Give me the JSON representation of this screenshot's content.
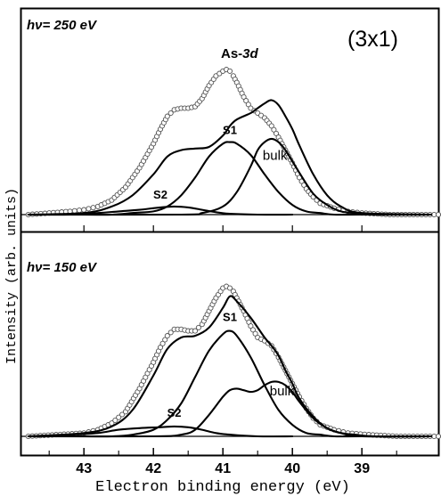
{
  "chart_data": [
    {
      "type": "line",
      "panel_label": "hν= 250 eV",
      "panel_label_parts": {
        "h": "h",
        "nu_suffix": "ν= 250 eV"
      },
      "reconstruction_label": "(3x1)",
      "core_level_label": {
        "element": "As-",
        "orbital": "3d"
      },
      "x_inverted": true,
      "xlim": [
        43.9,
        37.9
      ],
      "ylim": [
        0,
        1.0
      ],
      "baseline": 0.0,
      "series": [
        {
          "name": "",
          "role": "measured",
          "style": "open-circles",
          "x": [
            43.8,
            43.5,
            43.2,
            43.0,
            42.8,
            42.6,
            42.4,
            42.2,
            42.0,
            41.9,
            41.8,
            41.7,
            41.6,
            41.5,
            41.4,
            41.3,
            41.2,
            41.1,
            41.0,
            40.95,
            40.9,
            40.85,
            40.8,
            40.7,
            40.6,
            40.5,
            40.4,
            40.3,
            40.2,
            40.1,
            40.0,
            39.9,
            39.8,
            39.7,
            39.6,
            39.4,
            39.2,
            39.0,
            38.6,
            38.2,
            37.9
          ],
          "y": [
            0.0,
            0.01,
            0.02,
            0.03,
            0.05,
            0.09,
            0.17,
            0.29,
            0.44,
            0.53,
            0.61,
            0.65,
            0.66,
            0.66,
            0.67,
            0.72,
            0.8,
            0.86,
            0.89,
            0.9,
            0.89,
            0.86,
            0.82,
            0.73,
            0.66,
            0.63,
            0.6,
            0.55,
            0.48,
            0.4,
            0.32,
            0.23,
            0.16,
            0.11,
            0.07,
            0.04,
            0.02,
            0.01,
            0.0,
            0.0,
            0.0
          ]
        },
        {
          "name": "S1",
          "role": "component",
          "x": [
            43.8,
            43.0,
            42.6,
            42.3,
            42.0,
            41.8,
            41.6,
            41.4,
            41.2,
            41.0,
            40.9,
            40.8,
            40.6,
            40.4,
            40.2,
            40.0,
            39.8,
            39.6,
            39.4,
            39.0,
            38.0
          ],
          "y": [
            0.0,
            0.0,
            0.0,
            0.01,
            0.02,
            0.05,
            0.12,
            0.23,
            0.36,
            0.44,
            0.45,
            0.44,
            0.37,
            0.25,
            0.14,
            0.06,
            0.02,
            0.01,
            0.0,
            0.0,
            0.0
          ]
        },
        {
          "name": "bulk",
          "role": "component",
          "x": [
            43.8,
            41.6,
            41.3,
            41.0,
            40.8,
            40.6,
            40.5,
            40.4,
            40.3,
            40.2,
            40.1,
            40.0,
            39.9,
            39.7,
            39.5,
            39.3,
            39.1,
            38.8,
            38.0
          ],
          "y": [
            0.0,
            0.0,
            0.01,
            0.05,
            0.14,
            0.3,
            0.4,
            0.45,
            0.47,
            0.45,
            0.4,
            0.33,
            0.26,
            0.13,
            0.06,
            0.02,
            0.01,
            0.0,
            0.0
          ]
        },
        {
          "name": "S2",
          "role": "component",
          "x": [
            43.8,
            43.2,
            42.8,
            42.5,
            42.2,
            41.9,
            41.7,
            41.5,
            41.3,
            41.1,
            40.9,
            40.5,
            40.0
          ],
          "y": [
            0.0,
            0.0,
            0.01,
            0.02,
            0.03,
            0.045,
            0.05,
            0.045,
            0.03,
            0.015,
            0.005,
            0.0,
            0.0
          ]
        },
        {
          "name": "",
          "role": "envelope",
          "x": [
            43.8,
            43.0,
            42.6,
            42.3,
            42.0,
            41.8,
            41.6,
            41.4,
            41.2,
            41.0,
            40.9,
            40.8,
            40.6,
            40.5,
            40.4,
            40.3,
            40.2,
            40.1,
            40.0,
            39.9,
            39.7,
            39.5,
            39.3,
            39.0,
            38.0
          ],
          "y": [
            0.0,
            0.01,
            0.05,
            0.12,
            0.25,
            0.36,
            0.4,
            0.41,
            0.42,
            0.49,
            0.55,
            0.59,
            0.63,
            0.66,
            0.69,
            0.71,
            0.68,
            0.61,
            0.53,
            0.43,
            0.25,
            0.12,
            0.05,
            0.01,
            0.0
          ]
        }
      ],
      "annotations": [
        {
          "text": "S1",
          "x": 40.9,
          "y": 0.5
        },
        {
          "text": "bulk",
          "x": 40.25,
          "y": 0.34
        },
        {
          "text": "S2",
          "x": 41.9,
          "y": 0.1
        }
      ]
    },
    {
      "type": "line",
      "panel_label": "hν= 150 eV",
      "panel_label_parts": {
        "h": "h",
        "nu_suffix": "ν= 150 eV"
      },
      "x_inverted": true,
      "xlim": [
        43.9,
        37.9
      ],
      "ylim": [
        0,
        1.0
      ],
      "baseline": 0.0,
      "series": [
        {
          "name": "",
          "role": "measured",
          "style": "open-circles",
          "x": [
            43.8,
            43.4,
            43.0,
            42.8,
            42.6,
            42.4,
            42.2,
            42.0,
            41.9,
            41.8,
            41.7,
            41.6,
            41.5,
            41.4,
            41.3,
            41.2,
            41.1,
            41.0,
            40.95,
            40.9,
            40.85,
            40.8,
            40.7,
            40.6,
            40.5,
            40.4,
            40.3,
            40.2,
            40.1,
            40.0,
            39.9,
            39.8,
            39.7,
            39.6,
            39.4,
            39.2,
            38.9,
            38.5,
            37.9
          ],
          "y": [
            0.0,
            0.01,
            0.02,
            0.04,
            0.08,
            0.15,
            0.29,
            0.45,
            0.54,
            0.61,
            0.65,
            0.65,
            0.64,
            0.64,
            0.68,
            0.76,
            0.84,
            0.9,
            0.91,
            0.9,
            0.88,
            0.84,
            0.76,
            0.67,
            0.6,
            0.58,
            0.55,
            0.48,
            0.4,
            0.32,
            0.24,
            0.17,
            0.11,
            0.07,
            0.04,
            0.02,
            0.01,
            0.0,
            0.0
          ]
        },
        {
          "name": "S1",
          "role": "component",
          "x": [
            43.8,
            43.0,
            42.6,
            42.3,
            42.0,
            41.8,
            41.6,
            41.4,
            41.2,
            41.0,
            40.9,
            40.8,
            40.6,
            40.4,
            40.2,
            40.0,
            39.8,
            39.6,
            39.4,
            39.0,
            38.0
          ],
          "y": [
            0.0,
            0.0,
            0.0,
            0.01,
            0.04,
            0.1,
            0.2,
            0.36,
            0.52,
            0.62,
            0.64,
            0.61,
            0.48,
            0.31,
            0.16,
            0.07,
            0.02,
            0.01,
            0.0,
            0.0,
            0.0
          ]
        },
        {
          "name": "bulk",
          "role": "component",
          "x": [
            43.8,
            42.0,
            41.6,
            41.4,
            41.2,
            41.0,
            40.9,
            40.8,
            40.7,
            40.6,
            40.5,
            40.4,
            40.3,
            40.2,
            40.1,
            40.0,
            39.9,
            39.7,
            39.5,
            39.3,
            39.1,
            38.8,
            38.0
          ],
          "y": [
            0.0,
            0.0,
            0.01,
            0.04,
            0.13,
            0.24,
            0.28,
            0.29,
            0.28,
            0.27,
            0.28,
            0.31,
            0.33,
            0.33,
            0.31,
            0.27,
            0.21,
            0.11,
            0.05,
            0.02,
            0.01,
            0.0,
            0.0
          ]
        },
        {
          "name": "S2",
          "role": "component",
          "x": [
            43.8,
            43.2,
            42.8,
            42.5,
            42.2,
            41.9,
            41.7,
            41.5,
            41.3,
            41.1,
            40.9,
            40.5,
            40.0
          ],
          "y": [
            0.0,
            0.01,
            0.02,
            0.04,
            0.05,
            0.055,
            0.06,
            0.055,
            0.04,
            0.02,
            0.01,
            0.0,
            0.0
          ]
        },
        {
          "name": "",
          "role": "envelope",
          "x": [
            43.8,
            43.0,
            42.6,
            42.3,
            42.0,
            41.8,
            41.6,
            41.4,
            41.2,
            41.0,
            40.9,
            40.8,
            40.6,
            40.4,
            40.3,
            40.2,
            40.1,
            40.0,
            39.9,
            39.7,
            39.5,
            39.3,
            39.0,
            38.0
          ],
          "y": [
            0.0,
            0.02,
            0.06,
            0.16,
            0.37,
            0.53,
            0.6,
            0.61,
            0.66,
            0.78,
            0.85,
            0.82,
            0.72,
            0.6,
            0.55,
            0.49,
            0.4,
            0.32,
            0.23,
            0.12,
            0.05,
            0.02,
            0.0,
            0.0
          ]
        }
      ],
      "annotations": [
        {
          "text": "S1",
          "x": 40.9,
          "y": 0.7
        },
        {
          "text": "bulk",
          "x": 40.15,
          "y": 0.25
        },
        {
          "text": "S2",
          "x": 41.7,
          "y": 0.12
        }
      ]
    }
  ],
  "x_axis": {
    "label": "Electron binding energy (eV)",
    "ticks": [
      43,
      42,
      41,
      40,
      39
    ],
    "tick_labels": [
      "43",
      "42",
      "41",
      "40",
      "39"
    ]
  },
  "y_axis": {
    "label": "Intensity (arb. units)"
  }
}
